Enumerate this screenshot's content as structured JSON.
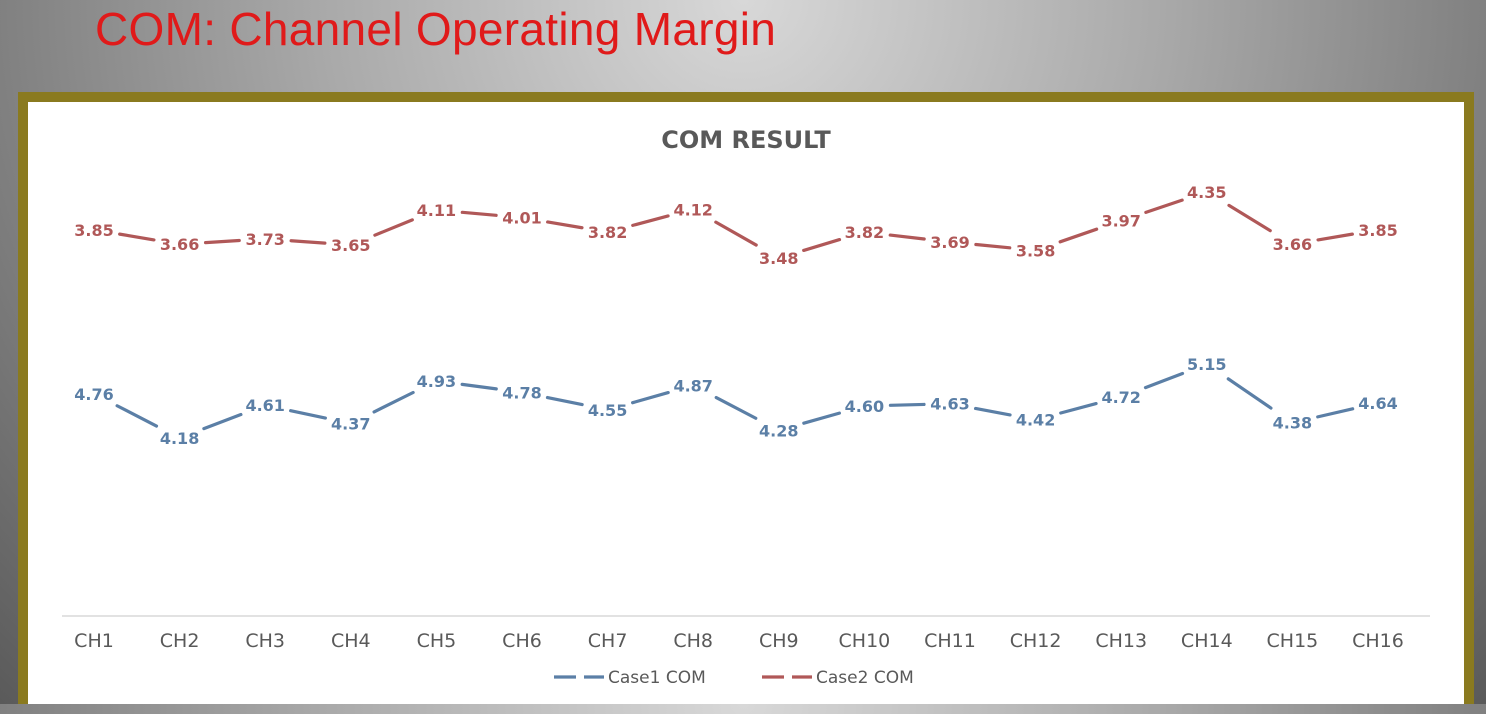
{
  "slide": {
    "title": "COM: Channel Operating Margin"
  },
  "colors": {
    "case1": "#5b7fa6",
    "case2": "#b05858",
    "frame": "#8a7a1f",
    "title_red": "#e01a1a"
  },
  "chart_data": {
    "type": "line",
    "title": "COM RESULT",
    "xlabel": "",
    "ylabel": "",
    "categories": [
      "CH1",
      "CH2",
      "CH3",
      "CH4",
      "CH5",
      "CH6",
      "CH7",
      "CH8",
      "CH9",
      "CH10",
      "CH11",
      "CH12",
      "CH13",
      "CH14",
      "CH15",
      "CH16"
    ],
    "series": [
      {
        "name": "Case1 COM",
        "color": "#5b7fa6",
        "values": [
          4.76,
          4.18,
          4.61,
          4.37,
          4.93,
          4.78,
          4.55,
          4.87,
          4.28,
          4.6,
          4.63,
          4.42,
          4.72,
          5.15,
          4.38,
          4.64
        ],
        "labels": [
          "4.76",
          "4.18",
          "4.61",
          "4.37",
          "4.93",
          "4.78",
          "4.55",
          "4.87",
          "4.28",
          "4.60",
          "4.63",
          "4.42",
          "4.72",
          "5.15",
          "4.38",
          "4.64"
        ]
      },
      {
        "name": "Case2 COM",
        "color": "#b05858",
        "values": [
          3.85,
          3.66,
          3.73,
          3.65,
          4.11,
          4.01,
          3.82,
          4.12,
          3.48,
          3.82,
          3.69,
          3.58,
          3.97,
          4.35,
          3.66,
          3.85
        ],
        "labels": [
          "3.85",
          "3.66",
          "3.73",
          "3.65",
          "4.11",
          "4.01",
          "3.82",
          "4.12",
          "3.48",
          "3.82",
          "3.69",
          "3.58",
          "3.97",
          "4.35",
          "3.66",
          "3.85"
        ]
      }
    ],
    "grid": false,
    "legend": "bottom-center",
    "data_labels": true
  }
}
